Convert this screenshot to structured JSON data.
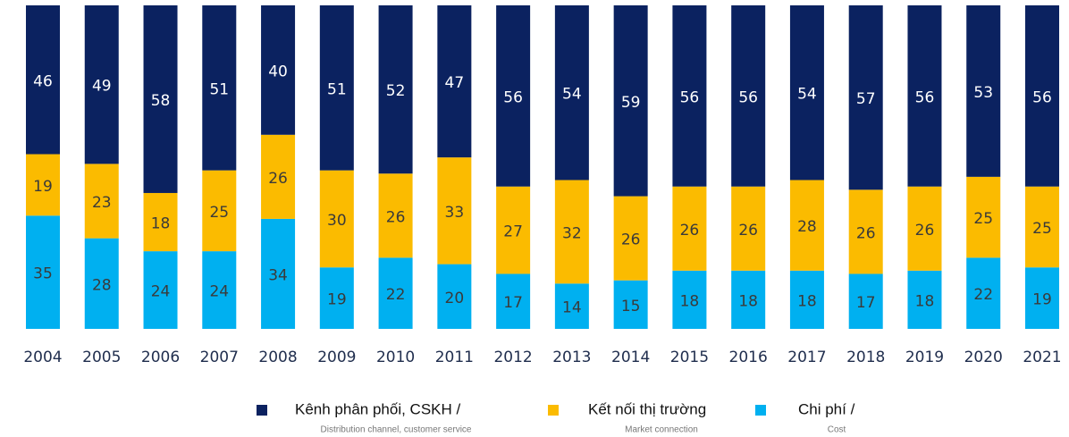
{
  "chart_data": {
    "type": "stacked_bar",
    "categories": [
      "2004",
      "2005",
      "2006",
      "2007",
      "2008",
      "2009",
      "2010",
      "2011",
      "2012",
      "2013",
      "2014",
      "2015",
      "2016",
      "2017",
      "2018",
      "2019",
      "2020",
      "2021"
    ],
    "series": [
      {
        "name": "Kênh phân phối, CSKH /",
        "subtitle": "Distribution channel, customer service",
        "color": "#0b2260",
        "values": [
          46,
          49,
          58,
          51,
          40,
          51,
          52,
          47,
          56,
          54,
          59,
          56,
          56,
          54,
          57,
          56,
          53,
          56
        ]
      },
      {
        "name": "Kết nối thị trường",
        "subtitle": "Market connection",
        "color": "#fbbb00",
        "values": [
          19,
          23,
          18,
          25,
          26,
          30,
          26,
          33,
          27,
          32,
          26,
          26,
          26,
          28,
          26,
          26,
          25,
          25
        ]
      },
      {
        "name": "Chi phí /",
        "subtitle": "Cost",
        "color": "#00b0f0",
        "values": [
          35,
          28,
          24,
          24,
          34,
          19,
          22,
          20,
          17,
          14,
          15,
          18,
          18,
          18,
          17,
          18,
          22,
          19
        ]
      }
    ],
    "ylim": [
      0,
      100
    ]
  }
}
